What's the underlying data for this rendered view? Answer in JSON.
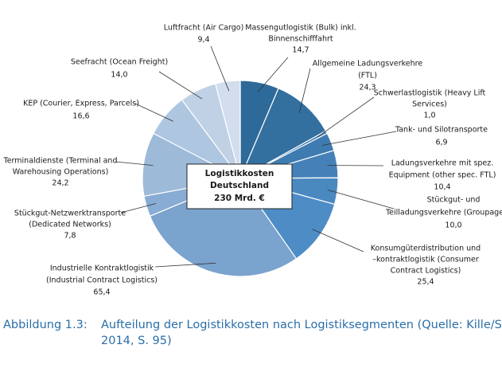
{
  "chart_data": {
    "type": "pie",
    "center_label": [
      "Logistikkosten",
      "Deutschland",
      "230 Mrd. €"
    ],
    "categories": [
      [
        "Massengutlogistik (Bulk) inkl.",
        "Binnenschifffahrt"
      ],
      [
        "Allgemeine Ladungsverkehre",
        "(FTL)"
      ],
      [
        "Schwerlastlogistik (Heavy Lift",
        "Services)"
      ],
      [
        "Tank- und Silotransporte"
      ],
      [
        "Ladungsverkehre mit spez.",
        "Equipment (other spec. FTL)"
      ],
      [
        "Stückgut- und",
        "Teilladungsverkehre (Groupage/LTL)"
      ],
      [
        "Konsumgüterdistribution und",
        "–kontraktlogistik (Consumer",
        "Contract Logistics)"
      ],
      [
        "Industrielle Kontraktlogistik",
        "(Industrial Contract Logistics)"
      ],
      [
        "Stückgut-Netzwerktransporte",
        "(Dedicated Networks)"
      ],
      [
        "Terminaldienste (Terminal and",
        "Warehousing Operations)"
      ],
      [
        "KEP (Courier, Express, Parcels)"
      ],
      [
        "Seefracht (Ocean Freight)"
      ],
      [
        "Luftfracht (Air Cargo)"
      ]
    ],
    "values": [
      14.7,
      24.3,
      1.0,
      6.9,
      10.4,
      10.0,
      25.4,
      65.4,
      7.8,
      24.2,
      16.6,
      14.0,
      9.4
    ],
    "value_labels": [
      "14,7",
      "24,3",
      "1,0",
      "6,9",
      "10,4",
      "10,0",
      "25,4",
      "65,4",
      "7,8",
      "24,2",
      "16,6",
      "14,0",
      "9,4"
    ],
    "colors": [
      "#2d6a99",
      "#336f9f",
      "#3a76a8",
      "#3d7bb0",
      "#4581b8",
      "#4a88c0",
      "#4e8cc6",
      "#7aa3ce",
      "#88acd3",
      "#9dbad9",
      "#afc6e0",
      "#c0d1e6",
      "#d2dded"
    ]
  },
  "caption": {
    "number": "Abbildung 1.3:",
    "lines": [
      "Aufteilung der Logistikkosten nach Logistiksegmenten (Quelle: Kille/Schwemmer",
      "2014, S. 95)"
    ]
  }
}
